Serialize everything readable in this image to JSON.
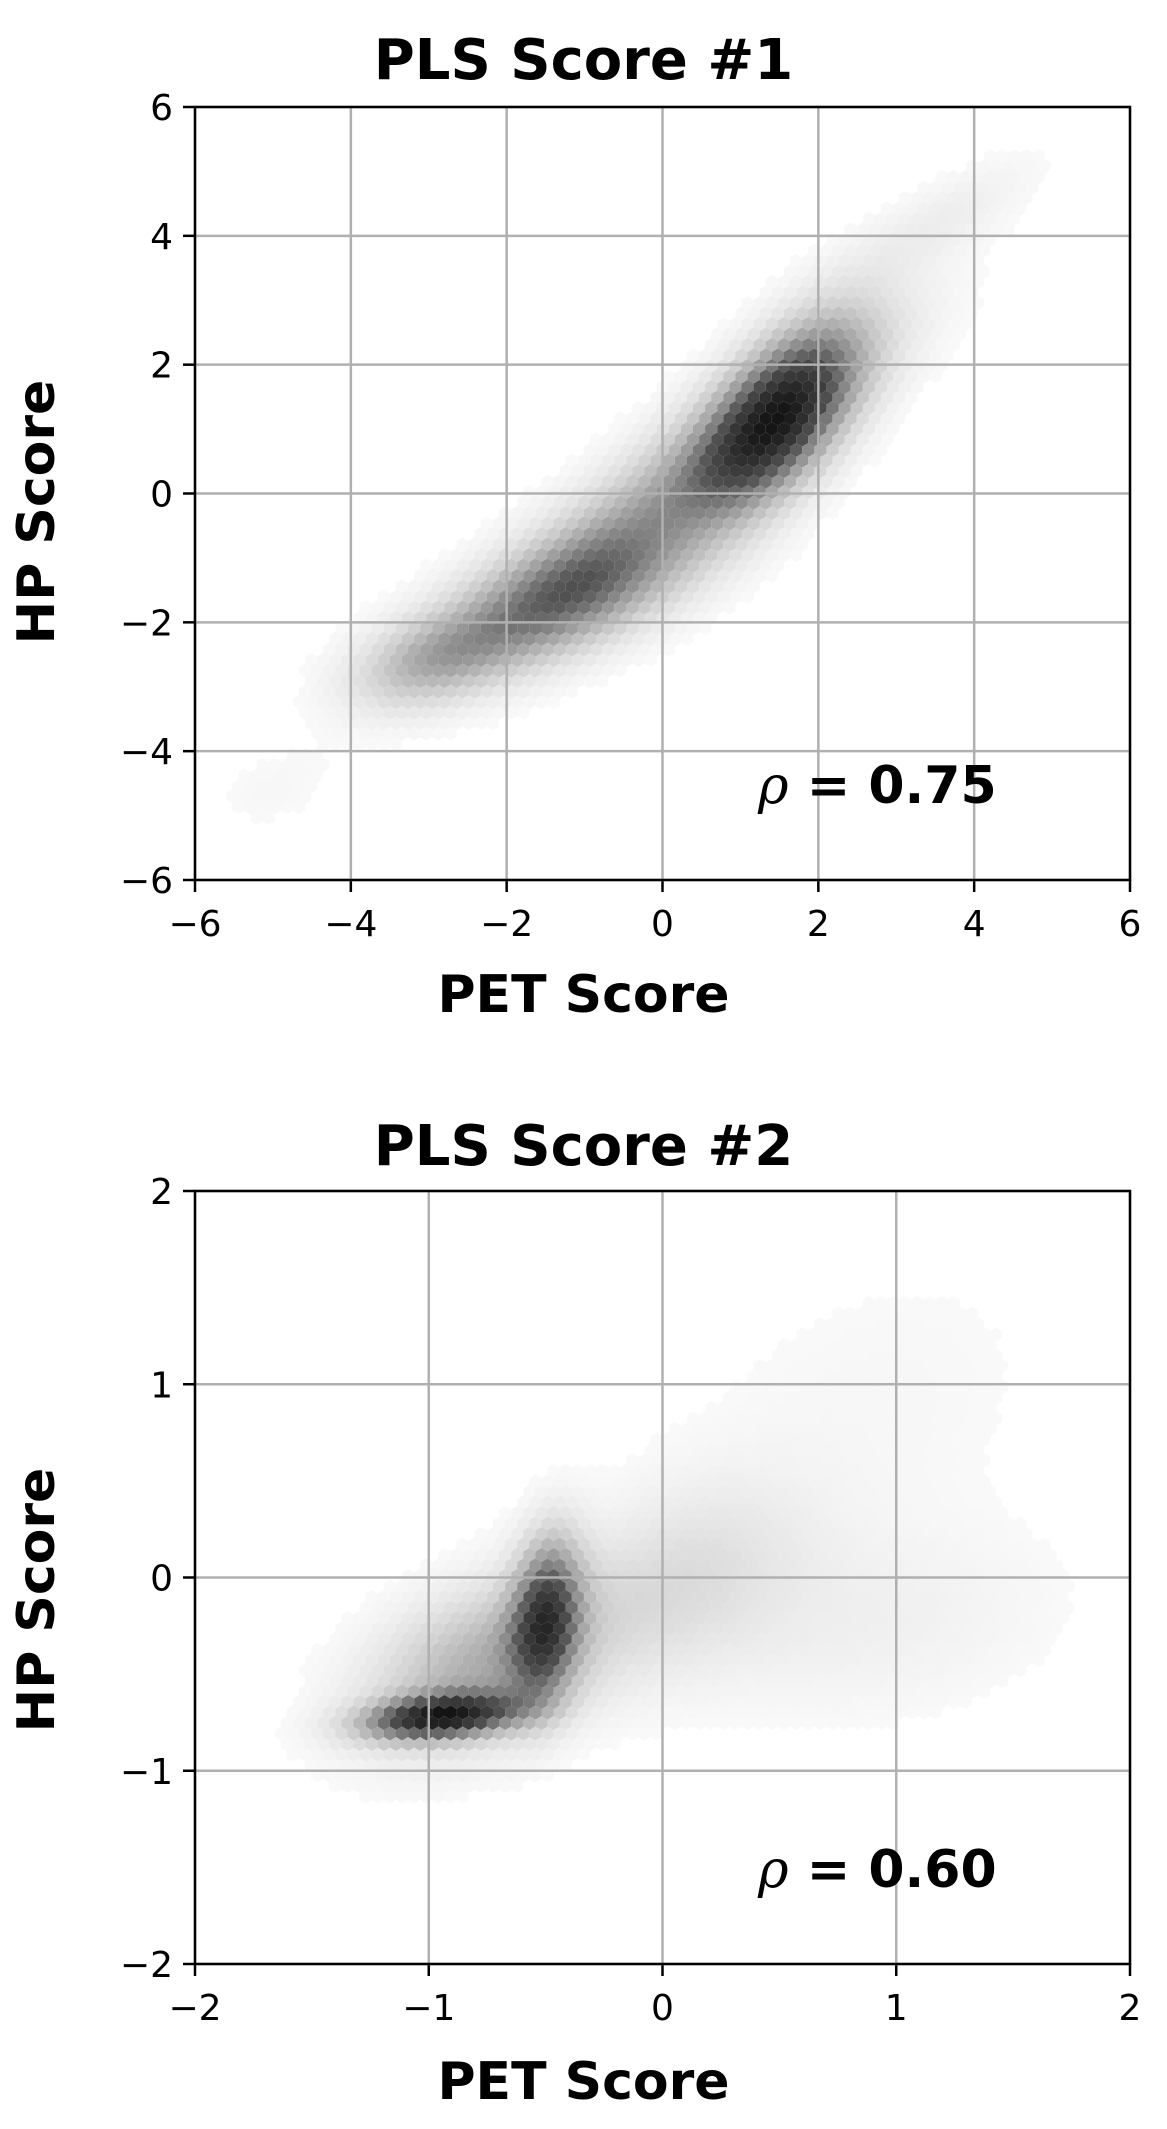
{
  "chart_data": [
    {
      "type": "scatter",
      "title": "PLS Score #1",
      "xlabel": "PET Score",
      "ylabel": "HP Score",
      "xlim": [
        -6,
        6
      ],
      "ylim": [
        -6,
        6
      ],
      "xticks": [
        "−6",
        "−4",
        "−2",
        "0",
        "2",
        "4",
        "6"
      ],
      "yticks": [
        "−6",
        "−4",
        "−2",
        "0",
        "2",
        "4",
        "6"
      ],
      "grid": true,
      "style": "hexbin-density-grayscale",
      "annotation_symbol": "ρ",
      "annotation_value": "= 0.75",
      "density_clusters": [
        {
          "x": 1.5,
          "y": 1.2,
          "sx": 0.7,
          "sy": 1.0,
          "rho": 0.6,
          "weight": 1.0
        },
        {
          "x": -1.2,
          "y": -1.6,
          "sx": 1.1,
          "sy": 0.75,
          "rho": 0.6,
          "weight": 0.65
        },
        {
          "x": 0.3,
          "y": 0.2,
          "sx": 1.6,
          "sy": 1.5,
          "rho": 0.88,
          "weight": 0.45
        },
        {
          "x": -3.0,
          "y": -2.6,
          "sx": 0.7,
          "sy": 0.5,
          "rho": 0.4,
          "weight": 0.35
        },
        {
          "x": 3.5,
          "y": 4.2,
          "sx": 0.9,
          "sy": 0.7,
          "rho": 0.8,
          "weight": 0.1
        },
        {
          "x": -5.0,
          "y": -4.6,
          "sx": 0.6,
          "sy": 0.5,
          "rho": 0.3,
          "weight": 0.04
        }
      ]
    },
    {
      "type": "scatter",
      "title": "PLS Score #2",
      "xlabel": "PET Score",
      "ylabel": "HP Score",
      "xlim": [
        -2,
        2
      ],
      "ylim": [
        -2,
        2
      ],
      "xticks": [
        "−2",
        "−1",
        "0",
        "1",
        "2"
      ],
      "yticks": [
        "−2",
        "−1",
        "0",
        "1",
        "2"
      ],
      "grid": true,
      "style": "hexbin-density-grayscale",
      "annotation_symbol": "ρ",
      "annotation_value": "= 0.60",
      "density_clusters": [
        {
          "x": -0.95,
          "y": -0.72,
          "sx": 0.22,
          "sy": 0.08,
          "rho": 0.3,
          "weight": 1.0
        },
        {
          "x": -0.5,
          "y": -0.2,
          "sx": 0.1,
          "sy": 0.28,
          "rho": 0.2,
          "weight": 0.8
        },
        {
          "x": -0.75,
          "y": -0.45,
          "sx": 0.35,
          "sy": 0.3,
          "rho": 0.4,
          "weight": 0.45
        },
        {
          "x": 0.1,
          "y": 0.0,
          "sx": 0.35,
          "sy": 0.35,
          "rho": 0.3,
          "weight": 0.18
        },
        {
          "x": 0.9,
          "y": -0.25,
          "sx": 0.55,
          "sy": 0.35,
          "rho": 0.2,
          "weight": 0.08
        },
        {
          "x": 0.9,
          "y": 0.9,
          "sx": 0.6,
          "sy": 0.6,
          "rho": 0.3,
          "weight": 0.04
        }
      ]
    }
  ]
}
